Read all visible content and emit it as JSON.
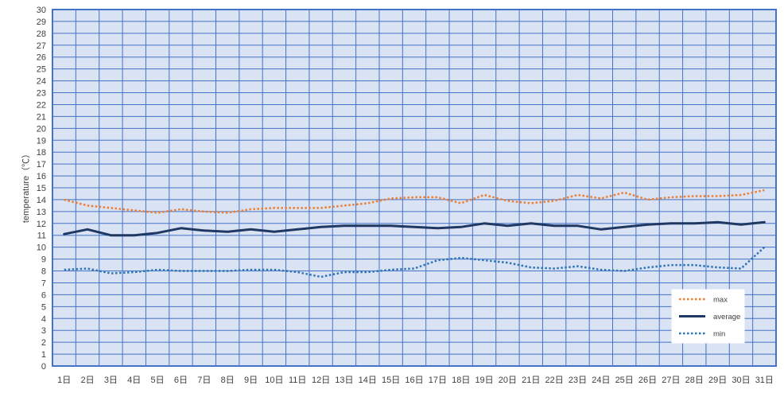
{
  "chart_data": {
    "type": "line",
    "title": "",
    "xlabel": "",
    "ylabel": "temperature（℃）",
    "ylim": [
      0,
      30
    ],
    "ytick_step": 1,
    "grid": true,
    "legend_position": "bottom-right",
    "categories": [
      "1日",
      "2日",
      "3日",
      "4日",
      "5日",
      "6日",
      "7日",
      "8日",
      "9日",
      "10日",
      "11日",
      "12日",
      "13日",
      "14日",
      "15日",
      "16日",
      "17日",
      "18日",
      "19日",
      "20日",
      "21日",
      "22日",
      "23日",
      "24日",
      "25日",
      "26日",
      "27日",
      "28日",
      "29日",
      "30日",
      "31日"
    ],
    "series": [
      {
        "name": "max",
        "color": "#ED7D31",
        "style": "dotted",
        "values": [
          14.0,
          13.5,
          13.3,
          13.1,
          12.9,
          13.2,
          13.0,
          12.9,
          13.2,
          13.3,
          13.3,
          13.3,
          13.5,
          13.7,
          14.1,
          14.2,
          14.2,
          13.7,
          14.4,
          13.9,
          13.7,
          13.9,
          14.4,
          14.1,
          14.6,
          14.0,
          14.2,
          14.3,
          14.3,
          14.4,
          14.8
        ]
      },
      {
        "name": "average",
        "color": "#1F3864",
        "style": "solid",
        "values": [
          11.1,
          11.5,
          11.0,
          11.0,
          11.2,
          11.6,
          11.4,
          11.3,
          11.5,
          11.3,
          11.5,
          11.7,
          11.8,
          11.8,
          11.8,
          11.7,
          11.6,
          11.7,
          12.0,
          11.8,
          12.0,
          11.8,
          11.8,
          11.5,
          11.7,
          11.9,
          12.0,
          12.0,
          12.1,
          11.9,
          12.1
        ]
      },
      {
        "name": "min",
        "color": "#2E75B6",
        "style": "dotted",
        "values": [
          8.1,
          8.2,
          7.8,
          7.9,
          8.1,
          8.0,
          8.0,
          8.0,
          8.1,
          8.1,
          7.9,
          7.5,
          7.9,
          7.9,
          8.1,
          8.2,
          8.9,
          9.1,
          8.9,
          8.7,
          8.3,
          8.2,
          8.4,
          8.1,
          8.0,
          8.3,
          8.5,
          8.5,
          8.3,
          8.2,
          10.0
        ]
      }
    ]
  },
  "colors": {
    "plot_background": "#DAE3F3",
    "grid": "#4472C4",
    "frame": "#4472C4"
  }
}
